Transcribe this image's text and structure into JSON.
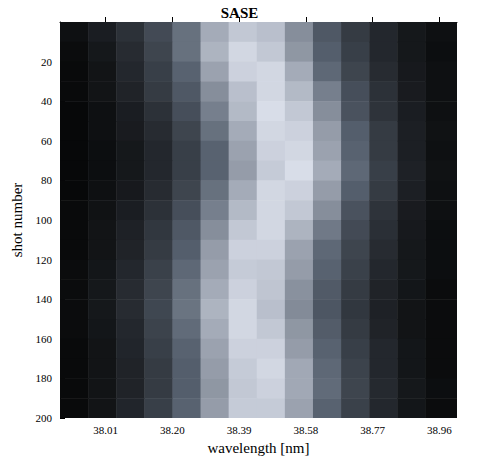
{
  "chart_data": {
    "type": "heatmap",
    "title": "SASE",
    "x_label": "wavelength [nm]",
    "y_label": "shot number",
    "xlim": [
      37.88,
      39.01
    ],
    "ylim": [
      0,
      200
    ],
    "xticks": [
      38.01,
      {
        "value": 38.2,
        "label": "38.20"
      },
      38.39,
      38.58,
      38.77,
      38.96
    ],
    "yticks": [
      20,
      40,
      60,
      80,
      100,
      120,
      140,
      160,
      180,
      200
    ],
    "y_inverted": true,
    "x_bins": [
      37.88,
      37.96,
      38.04,
      38.12,
      38.2,
      38.28,
      38.36,
      38.44,
      38.52,
      38.6,
      38.68,
      38.76,
      38.84,
      38.92,
      39.01
    ],
    "y_bins": [
      0,
      10,
      20,
      30,
      40,
      50,
      60,
      70,
      80,
      90,
      100,
      110,
      120,
      130,
      140,
      150,
      160,
      170,
      180,
      190,
      200
    ],
    "zlim": [
      0,
      1
    ],
    "z": [
      [
        0.08,
        0.15,
        0.25,
        0.38,
        0.55,
        0.75,
        0.85,
        0.82,
        0.65,
        0.45,
        0.3,
        0.2,
        0.12,
        0.08
      ],
      [
        0.06,
        0.12,
        0.22,
        0.35,
        0.55,
        0.78,
        0.9,
        0.85,
        0.68,
        0.48,
        0.32,
        0.2,
        0.12,
        0.07
      ],
      [
        0.05,
        0.1,
        0.2,
        0.32,
        0.5,
        0.72,
        0.88,
        0.9,
        0.75,
        0.52,
        0.35,
        0.22,
        0.13,
        0.08
      ],
      [
        0.05,
        0.1,
        0.18,
        0.3,
        0.45,
        0.65,
        0.82,
        0.9,
        0.8,
        0.6,
        0.4,
        0.25,
        0.14,
        0.08
      ],
      [
        0.04,
        0.08,
        0.15,
        0.25,
        0.4,
        0.6,
        0.8,
        0.92,
        0.85,
        0.65,
        0.42,
        0.26,
        0.15,
        0.08
      ],
      [
        0.04,
        0.08,
        0.14,
        0.22,
        0.35,
        0.55,
        0.75,
        0.9,
        0.88,
        0.7,
        0.48,
        0.3,
        0.16,
        0.09
      ],
      [
        0.04,
        0.07,
        0.12,
        0.2,
        0.32,
        0.5,
        0.72,
        0.88,
        0.9,
        0.72,
        0.5,
        0.3,
        0.16,
        0.08
      ],
      [
        0.04,
        0.07,
        0.12,
        0.2,
        0.32,
        0.5,
        0.7,
        0.86,
        0.92,
        0.75,
        0.52,
        0.32,
        0.17,
        0.09
      ],
      [
        0.04,
        0.08,
        0.13,
        0.22,
        0.35,
        0.55,
        0.75,
        0.9,
        0.88,
        0.7,
        0.48,
        0.3,
        0.16,
        0.08
      ],
      [
        0.05,
        0.09,
        0.15,
        0.25,
        0.4,
        0.6,
        0.8,
        0.9,
        0.85,
        0.65,
        0.42,
        0.26,
        0.14,
        0.08
      ],
      [
        0.05,
        0.1,
        0.17,
        0.28,
        0.45,
        0.65,
        0.85,
        0.9,
        0.78,
        0.58,
        0.38,
        0.24,
        0.13,
        0.07
      ],
      [
        0.05,
        0.1,
        0.18,
        0.3,
        0.48,
        0.7,
        0.88,
        0.88,
        0.72,
        0.52,
        0.35,
        0.22,
        0.12,
        0.07
      ],
      [
        0.06,
        0.11,
        0.2,
        0.33,
        0.52,
        0.72,
        0.86,
        0.85,
        0.7,
        0.5,
        0.33,
        0.2,
        0.12,
        0.07
      ],
      [
        0.06,
        0.12,
        0.22,
        0.35,
        0.55,
        0.75,
        0.88,
        0.84,
        0.66,
        0.46,
        0.3,
        0.18,
        0.11,
        0.06
      ],
      [
        0.06,
        0.12,
        0.22,
        0.36,
        0.56,
        0.78,
        0.9,
        0.82,
        0.64,
        0.44,
        0.28,
        0.17,
        0.1,
        0.06
      ],
      [
        0.06,
        0.11,
        0.2,
        0.34,
        0.53,
        0.75,
        0.9,
        0.85,
        0.68,
        0.47,
        0.3,
        0.18,
        0.1,
        0.06
      ],
      [
        0.05,
        0.1,
        0.19,
        0.32,
        0.5,
        0.72,
        0.88,
        0.88,
        0.7,
        0.5,
        0.32,
        0.2,
        0.11,
        0.06
      ],
      [
        0.05,
        0.1,
        0.18,
        0.3,
        0.48,
        0.7,
        0.86,
        0.9,
        0.74,
        0.52,
        0.34,
        0.2,
        0.11,
        0.06
      ],
      [
        0.05,
        0.1,
        0.18,
        0.3,
        0.48,
        0.68,
        0.85,
        0.88,
        0.74,
        0.53,
        0.35,
        0.21,
        0.12,
        0.07
      ],
      [
        0.05,
        0.1,
        0.19,
        0.32,
        0.5,
        0.7,
        0.86,
        0.86,
        0.72,
        0.5,
        0.33,
        0.2,
        0.11,
        0.06
      ]
    ]
  }
}
